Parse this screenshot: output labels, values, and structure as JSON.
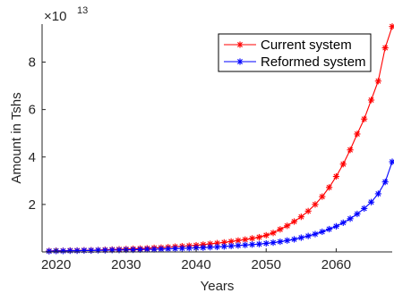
{
  "chart_data": {
    "type": "line",
    "xlabel": "Years",
    "ylabel": "Amount in Tshs",
    "y_multiplier_label": "×10",
    "y_multiplier_exponent": "13",
    "xlim": [
      2018,
      2068
    ],
    "ylim": [
      0,
      9.6
    ],
    "x_ticks": [
      2020,
      2030,
      2040,
      2050,
      2060
    ],
    "y_ticks": [
      2,
      4,
      6,
      8
    ],
    "grid": false,
    "legend_position": "top-right",
    "x": [
      2019,
      2020,
      2021,
      2022,
      2023,
      2024,
      2025,
      2026,
      2027,
      2028,
      2029,
      2030,
      2031,
      2032,
      2033,
      2034,
      2035,
      2036,
      2037,
      2038,
      2039,
      2040,
      2041,
      2042,
      2043,
      2044,
      2045,
      2046,
      2047,
      2048,
      2049,
      2050,
      2051,
      2052,
      2053,
      2054,
      2055,
      2056,
      2057,
      2058,
      2059,
      2060,
      2061,
      2062,
      2063,
      2064,
      2065,
      2066,
      2067,
      2068
    ],
    "series": [
      {
        "name": "Current system",
        "color": "#ff0000",
        "values": [
          0.04,
          0.05,
          0.05,
          0.06,
          0.06,
          0.07,
          0.07,
          0.08,
          0.09,
          0.1,
          0.11,
          0.12,
          0.13,
          0.14,
          0.15,
          0.17,
          0.18,
          0.2,
          0.22,
          0.24,
          0.26,
          0.28,
          0.31,
          0.34,
          0.37,
          0.4,
          0.44,
          0.48,
          0.52,
          0.57,
          0.62,
          0.7,
          0.8,
          0.95,
          1.1,
          1.28,
          1.48,
          1.72,
          2.0,
          2.33,
          2.72,
          3.18,
          3.7,
          4.3,
          4.97,
          5.6,
          6.4,
          7.2,
          8.6,
          9.5
        ]
      },
      {
        "name": "Reformed system",
        "color": "#0000ff",
        "values": [
          0.03,
          0.04,
          0.04,
          0.05,
          0.05,
          0.06,
          0.06,
          0.07,
          0.07,
          0.08,
          0.08,
          0.09,
          0.09,
          0.1,
          0.11,
          0.11,
          0.12,
          0.13,
          0.14,
          0.15,
          0.16,
          0.17,
          0.18,
          0.2,
          0.21,
          0.23,
          0.25,
          0.27,
          0.29,
          0.31,
          0.33,
          0.36,
          0.39,
          0.43,
          0.48,
          0.53,
          0.6,
          0.67,
          0.75,
          0.85,
          0.96,
          1.08,
          1.23,
          1.4,
          1.6,
          1.83,
          2.1,
          2.45,
          2.95,
          3.8
        ]
      }
    ]
  }
}
